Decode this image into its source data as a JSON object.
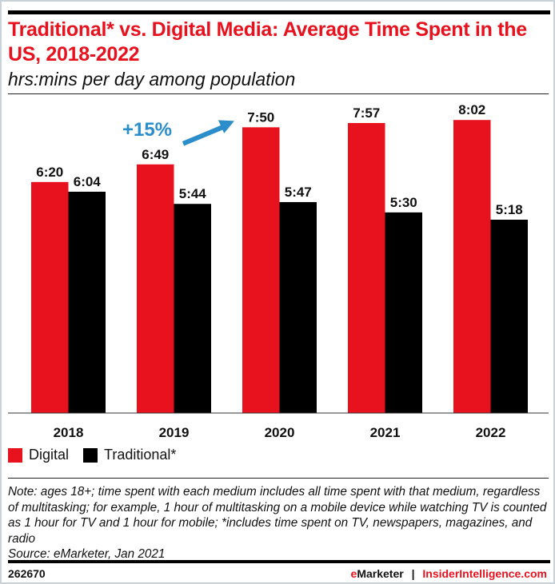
{
  "header": {
    "title": "Traditional* vs. Digital Media: Average Time Spent in the US, 2018-2022",
    "subtitle": "hrs:mins per day among population"
  },
  "chart_data": {
    "type": "bar",
    "title": "Traditional* vs. Digital Media: Average Time Spent in the US, 2018-2022",
    "subtitle": "hrs:mins per day among population",
    "xlabel": "",
    "ylabel": "",
    "categories": [
      "2018",
      "2019",
      "2020",
      "2021",
      "2022"
    ],
    "series": [
      {
        "name": "Digital",
        "color": "#e8111e",
        "values_minutes": [
          380,
          409,
          470,
          477,
          482
        ],
        "labels": [
          "6:20",
          "6:49",
          "7:50",
          "7:57",
          "8:02"
        ]
      },
      {
        "name": "Traditional*",
        "color": "#000000",
        "values_minutes": [
          364,
          344,
          347,
          330,
          318
        ],
        "labels": [
          "6:04",
          "5:44",
          "5:47",
          "5:30",
          "5:18"
        ]
      }
    ],
    "ylim": [
      0,
      482
    ],
    "grid": false,
    "legend": "bottom-left",
    "annotation": {
      "text": "+15%",
      "color": "#2b8ecb",
      "from_category": "2019",
      "to_category": "2020",
      "series": "Digital"
    }
  },
  "legend": [
    {
      "label": "Digital",
      "color": "#e8111e"
    },
    {
      "label": "Traditional*",
      "color": "#000000"
    }
  ],
  "note": "Note: ages 18+; time spent with each medium includes all time spent with that medium, regardless of multitasking; for example, 1 hour of multitasking on a mobile device while watching TV is counted as 1 hour for TV and 1 hour for mobile; *includes time spent on TV, newspapers, magazines, and radio",
  "source": "Source: eMarketer, Jan 2021",
  "footer": {
    "chart_id": "262670",
    "brand_primary": "eMarketer",
    "separator": "|",
    "brand_secondary": "InsiderIntelligence.com"
  }
}
